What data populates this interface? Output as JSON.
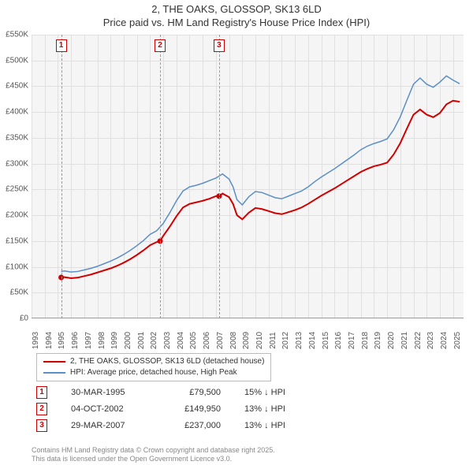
{
  "title_line1": "2, THE OAKS, GLOSSOP, SK13 6LD",
  "title_line2": "Price paid vs. HM Land Registry's House Price Index (HPI)",
  "chart": {
    "type": "line",
    "background_color": "#f5f5f5",
    "grid_color": "#e0e0e0",
    "y": {
      "min": 0,
      "max": 550000,
      "step": 50000,
      "labels": [
        "£0",
        "£50K",
        "£100K",
        "£150K",
        "£200K",
        "£250K",
        "£300K",
        "£350K",
        "£400K",
        "£450K",
        "£500K",
        "£550K"
      ]
    },
    "x": {
      "min": 1993,
      "max": 2025.8,
      "labels": [
        "1993",
        "1994",
        "1995",
        "1996",
        "1997",
        "1998",
        "1999",
        "2000",
        "2001",
        "2002",
        "2003",
        "2004",
        "2005",
        "2006",
        "2007",
        "2008",
        "2009",
        "2010",
        "2011",
        "2012",
        "2013",
        "2014",
        "2015",
        "2016",
        "2017",
        "2018",
        "2019",
        "2020",
        "2021",
        "2022",
        "2023",
        "2024",
        "2025"
      ]
    },
    "series": [
      {
        "name": "price_paid",
        "color": "#d00000",
        "width": 2,
        "legend": "2, THE OAKS, GLOSSOP, SK13 6LD (detached house)",
        "points": [
          [
            1995.25,
            79500
          ],
          [
            1995.5,
            80000
          ],
          [
            1996,
            78000
          ],
          [
            1996.5,
            79000
          ],
          [
            1997,
            82000
          ],
          [
            1997.5,
            85000
          ],
          [
            1998,
            89000
          ],
          [
            1998.5,
            93000
          ],
          [
            1999,
            97000
          ],
          [
            1999.5,
            102000
          ],
          [
            2000,
            108000
          ],
          [
            2000.5,
            115000
          ],
          [
            2001,
            123000
          ],
          [
            2001.5,
            132000
          ],
          [
            2002,
            142000
          ],
          [
            2002.5,
            148000
          ],
          [
            2002.76,
            149950
          ],
          [
            2003,
            160000
          ],
          [
            2003.5,
            178000
          ],
          [
            2004,
            198000
          ],
          [
            2004.5,
            215000
          ],
          [
            2005,
            222000
          ],
          [
            2005.5,
            225000
          ],
          [
            2006,
            228000
          ],
          [
            2006.5,
            232000
          ],
          [
            2007,
            237000
          ],
          [
            2007.24,
            237000
          ],
          [
            2007.5,
            242000
          ],
          [
            2008,
            235000
          ],
          [
            2008.3,
            222000
          ],
          [
            2008.6,
            200000
          ],
          [
            2009,
            192000
          ],
          [
            2009.5,
            205000
          ],
          [
            2010,
            214000
          ],
          [
            2010.5,
            212000
          ],
          [
            2011,
            208000
          ],
          [
            2011.5,
            204000
          ],
          [
            2012,
            202000
          ],
          [
            2012.5,
            206000
          ],
          [
            2013,
            210000
          ],
          [
            2013.5,
            215000
          ],
          [
            2014,
            222000
          ],
          [
            2014.5,
            230000
          ],
          [
            2015,
            238000
          ],
          [
            2015.5,
            245000
          ],
          [
            2016,
            252000
          ],
          [
            2016.5,
            260000
          ],
          [
            2017,
            268000
          ],
          [
            2017.5,
            276000
          ],
          [
            2018,
            284000
          ],
          [
            2018.5,
            290000
          ],
          [
            2019,
            295000
          ],
          [
            2019.5,
            298000
          ],
          [
            2020,
            302000
          ],
          [
            2020.5,
            318000
          ],
          [
            2021,
            340000
          ],
          [
            2021.5,
            368000
          ],
          [
            2022,
            395000
          ],
          [
            2022.5,
            405000
          ],
          [
            2023,
            395000
          ],
          [
            2023.5,
            390000
          ],
          [
            2024,
            398000
          ],
          [
            2024.5,
            415000
          ],
          [
            2025,
            422000
          ],
          [
            2025.5,
            420000
          ]
        ]
      },
      {
        "name": "hpi",
        "color": "#5b8fc7",
        "width": 1.5,
        "legend": "HPI: Average price, detached house, High Peak",
        "points": [
          [
            1995.25,
            91000
          ],
          [
            1995.5,
            92000
          ],
          [
            1996,
            90000
          ],
          [
            1996.5,
            91000
          ],
          [
            1997,
            94000
          ],
          [
            1997.5,
            97000
          ],
          [
            1998,
            101000
          ],
          [
            1998.5,
            106000
          ],
          [
            1999,
            111000
          ],
          [
            1999.5,
            117000
          ],
          [
            2000,
            124000
          ],
          [
            2000.5,
            132000
          ],
          [
            2001,
            141000
          ],
          [
            2001.5,
            151000
          ],
          [
            2002,
            163000
          ],
          [
            2002.5,
            170000
          ],
          [
            2003,
            184000
          ],
          [
            2003.5,
            205000
          ],
          [
            2004,
            228000
          ],
          [
            2004.5,
            247000
          ],
          [
            2005,
            255000
          ],
          [
            2005.5,
            258000
          ],
          [
            2006,
            262000
          ],
          [
            2006.5,
            267000
          ],
          [
            2007,
            272000
          ],
          [
            2007.5,
            280000
          ],
          [
            2008,
            270000
          ],
          [
            2008.3,
            255000
          ],
          [
            2008.6,
            230000
          ],
          [
            2009,
            220000
          ],
          [
            2009.5,
            236000
          ],
          [
            2010,
            246000
          ],
          [
            2010.5,
            244000
          ],
          [
            2011,
            239000
          ],
          [
            2011.5,
            234000
          ],
          [
            2012,
            232000
          ],
          [
            2012.5,
            237000
          ],
          [
            2013,
            242000
          ],
          [
            2013.5,
            247000
          ],
          [
            2014,
            255000
          ],
          [
            2014.5,
            265000
          ],
          [
            2015,
            274000
          ],
          [
            2015.5,
            282000
          ],
          [
            2016,
            290000
          ],
          [
            2016.5,
            299000
          ],
          [
            2017,
            308000
          ],
          [
            2017.5,
            317000
          ],
          [
            2018,
            327000
          ],
          [
            2018.5,
            334000
          ],
          [
            2019,
            339000
          ],
          [
            2019.5,
            343000
          ],
          [
            2020,
            348000
          ],
          [
            2020.5,
            366000
          ],
          [
            2021,
            391000
          ],
          [
            2021.5,
            423000
          ],
          [
            2022,
            454000
          ],
          [
            2022.5,
            466000
          ],
          [
            2023,
            454000
          ],
          [
            2023.5,
            448000
          ],
          [
            2024,
            458000
          ],
          [
            2024.5,
            470000
          ],
          [
            2025,
            462000
          ],
          [
            2025.5,
            455000
          ]
        ]
      }
    ],
    "sale_markers": [
      {
        "n": "1",
        "year": 1995.25,
        "price": 79500,
        "box_color": "#d00000"
      },
      {
        "n": "2",
        "year": 2002.76,
        "price": 149950,
        "box_color": "#d00000"
      },
      {
        "n": "3",
        "year": 2007.24,
        "price": 237000,
        "box_color": "#d00000"
      }
    ]
  },
  "legend_items": [
    {
      "color": "#d00000",
      "label": "2, THE OAKS, GLOSSOP, SK13 6LD (detached house)"
    },
    {
      "color": "#5b8fc7",
      "label": "HPI: Average price, detached house, High Peak"
    }
  ],
  "transactions": [
    {
      "n": "1",
      "date": "30-MAR-1995",
      "price": "£79,500",
      "diff": "15% ↓ HPI"
    },
    {
      "n": "2",
      "date": "04-OCT-2002",
      "price": "£149,950",
      "diff": "13% ↓ HPI"
    },
    {
      "n": "3",
      "date": "29-MAR-2007",
      "price": "£237,000",
      "diff": "13% ↓ HPI"
    }
  ],
  "footer_line1": "Contains HM Land Registry data © Crown copyright and database right 2025.",
  "footer_line2": "This data is licensed under the Open Government Licence v3.0."
}
